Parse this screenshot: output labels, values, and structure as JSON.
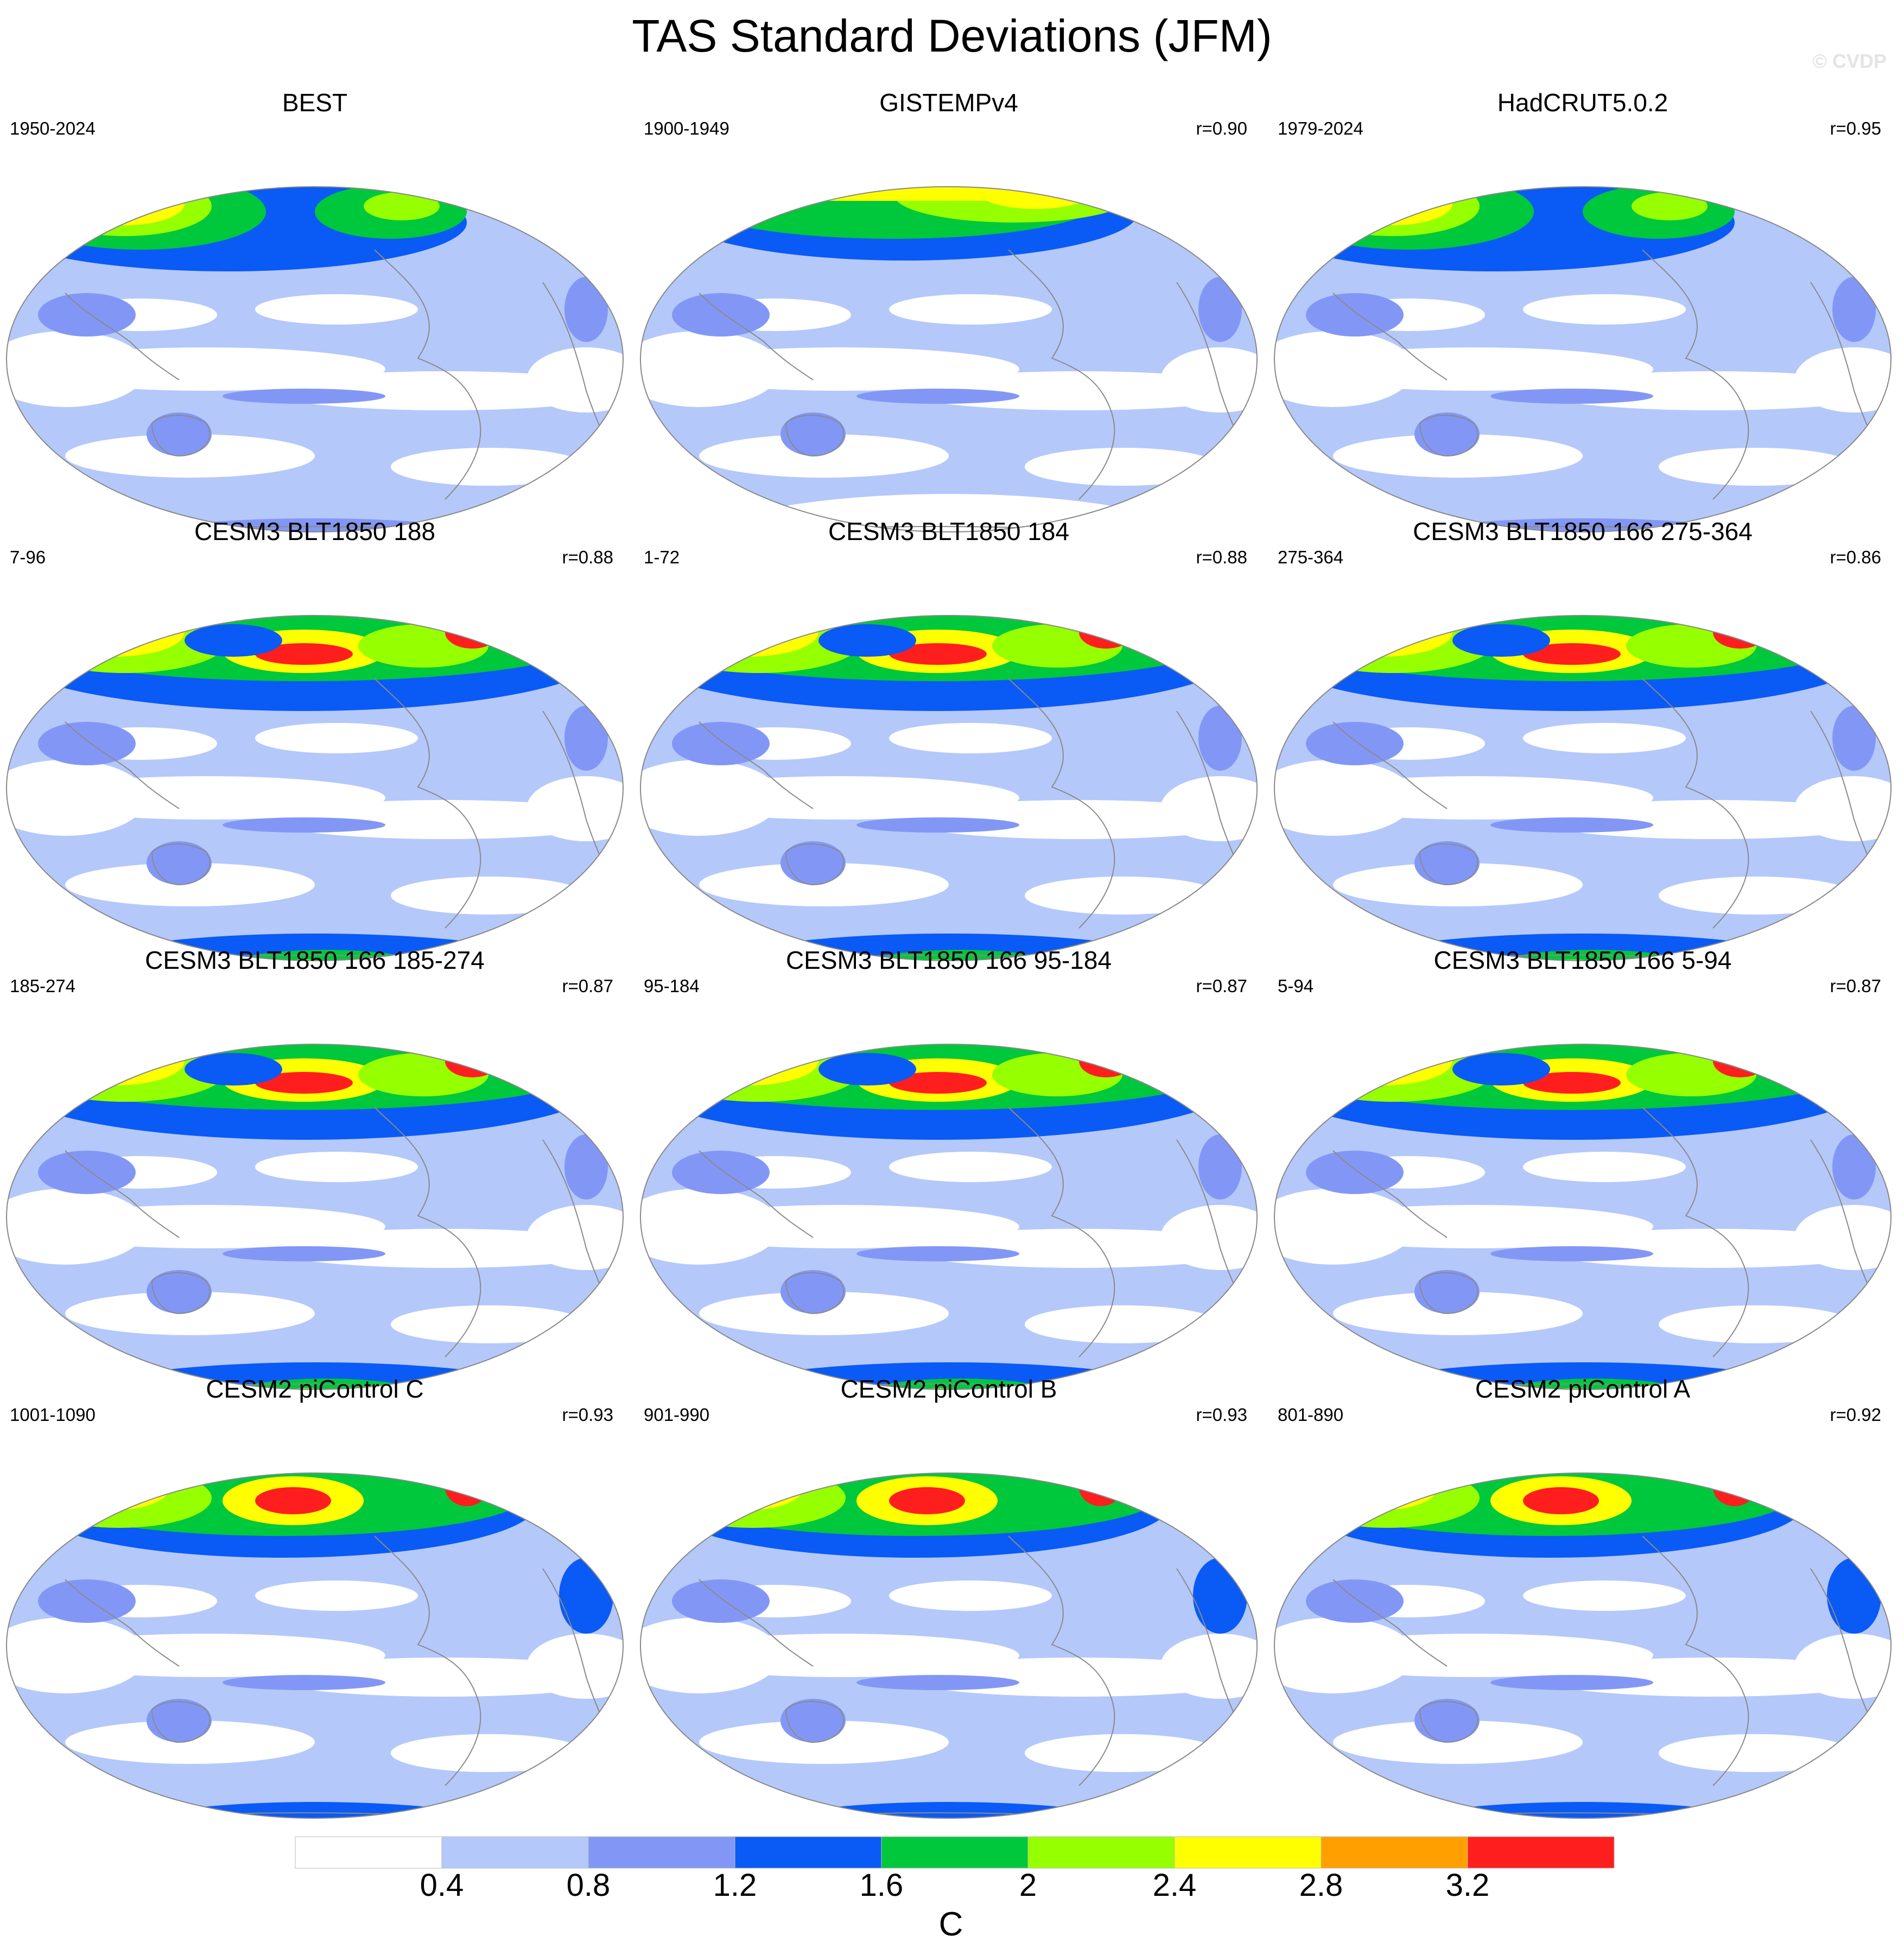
{
  "title": "TAS Standard Deviations (JFM)",
  "watermark": "© CVDP",
  "colors": {
    "levels": [
      "#ffffff",
      "#b4c8fa",
      "#8297f5",
      "#0a5af5",
      "#00c83c",
      "#96ff00",
      "#ffff00",
      "#ffa000",
      "#ff1e1e"
    ],
    "coast": "#8a8a8a",
    "outline": "#888888"
  },
  "panels": [
    {
      "title": "BEST",
      "period": "1950-2024",
      "corr": "",
      "variant": "obs"
    },
    {
      "title": "GISTEMPv4",
      "period": "1900-1949",
      "corr": "r=0.90",
      "variant": "obs-sparse"
    },
    {
      "title": "HadCRUT5.0.2",
      "period": "1979-2024",
      "corr": "r=0.95",
      "variant": "obs"
    },
    {
      "title": "CESM3 BLT1850 188",
      "period": "7-96",
      "corr": "r=0.88",
      "variant": "cesm3"
    },
    {
      "title": "CESM3 BLT1850 184",
      "period": "1-72",
      "corr": "r=0.88",
      "variant": "cesm3"
    },
    {
      "title": "CESM3 BLT1850 166 275-364",
      "period": "275-364",
      "corr": "r=0.86",
      "variant": "cesm3"
    },
    {
      "title": "CESM3 BLT1850 166 185-274",
      "period": "185-274",
      "corr": "r=0.87",
      "variant": "cesm3"
    },
    {
      "title": "CESM3 BLT1850 166 95-184",
      "period": "95-184",
      "corr": "r=0.87",
      "variant": "cesm3"
    },
    {
      "title": "CESM3 BLT1850 166 5-94",
      "period": "5-94",
      "corr": "r=0.87",
      "variant": "cesm3"
    },
    {
      "title": "CESM2 piControl C",
      "period": "1001-1090",
      "corr": "r=0.93",
      "variant": "cesm2"
    },
    {
      "title": "CESM2 piControl B",
      "period": "901-990",
      "corr": "r=0.93",
      "variant": "cesm2"
    },
    {
      "title": "CESM2 piControl A",
      "period": "801-890",
      "corr": "r=0.92",
      "variant": "cesm2"
    }
  ],
  "colorbar": {
    "labels": [
      "0.4",
      "0.8",
      "1.2",
      "1.6",
      "2",
      "2.4",
      "2.8",
      "3.2"
    ],
    "unit": "C"
  }
}
